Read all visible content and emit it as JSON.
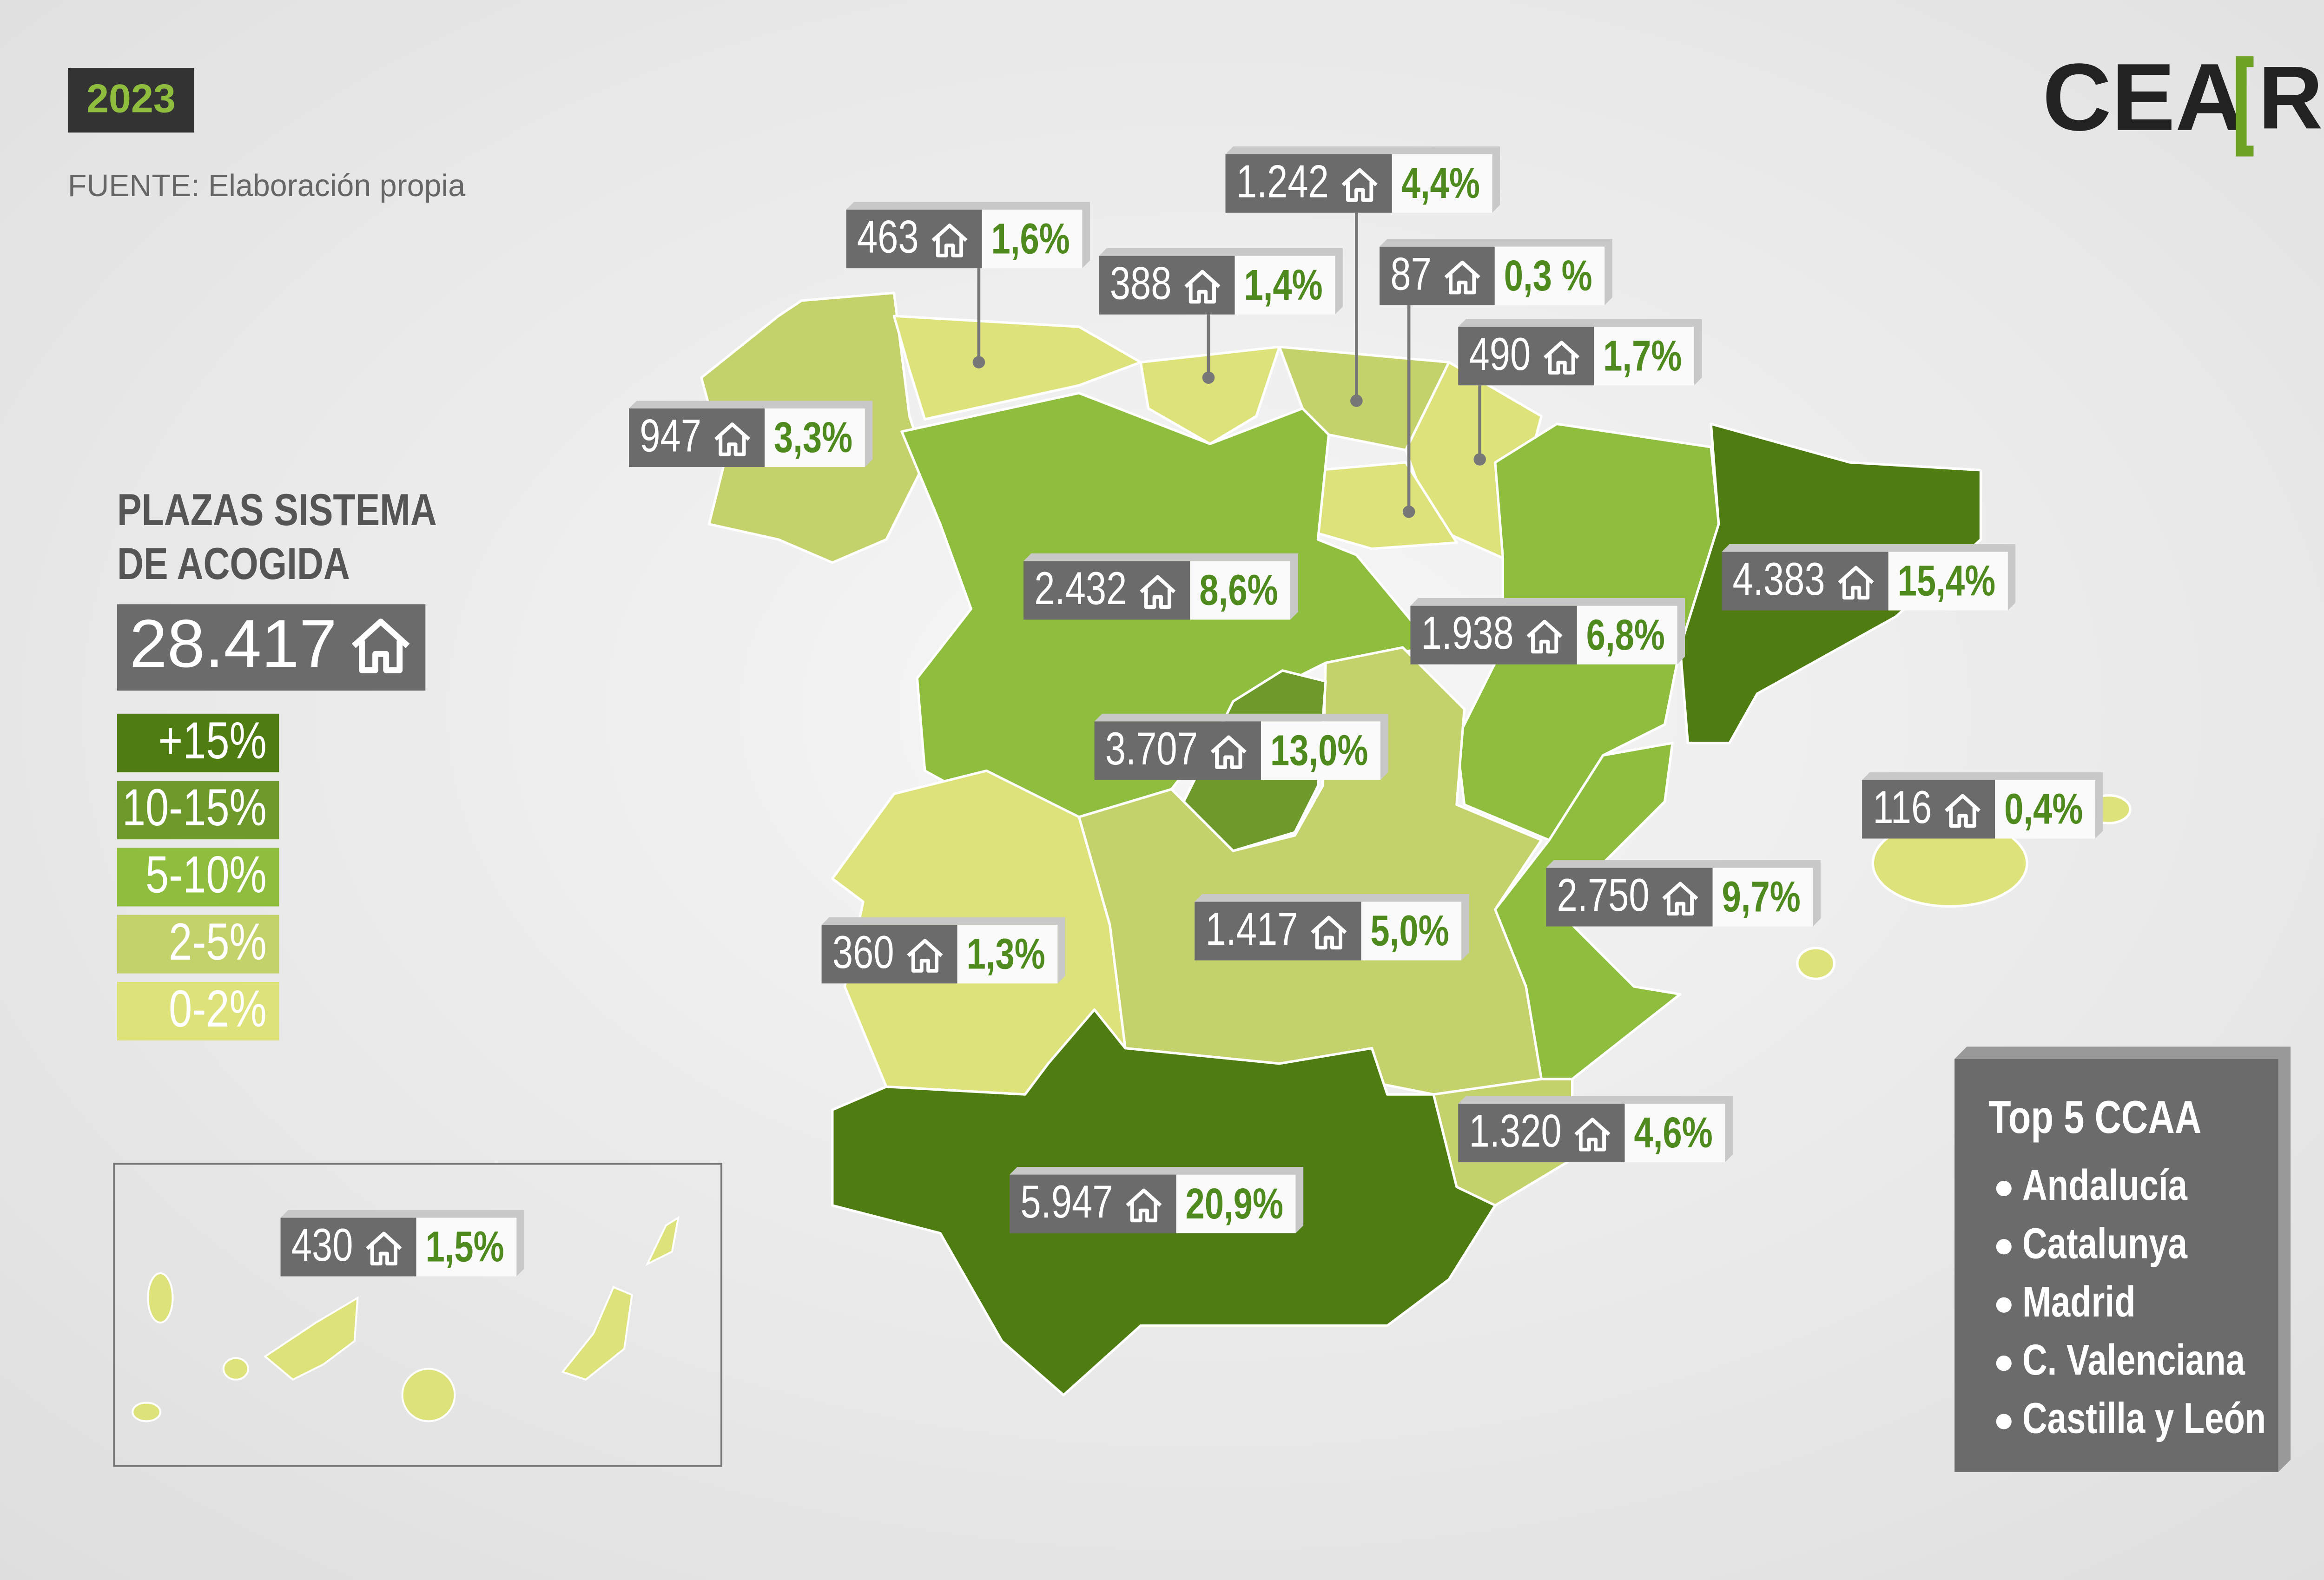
{
  "year": "2023",
  "source": "FUENTE: Elaboración propia",
  "logo": {
    "text": "CEA",
    "mark": "R"
  },
  "total_title": [
    "PLAZAS SISTEMA",
    "DE ACOGIDA"
  ],
  "total": "28.417",
  "legend": [
    "+15%",
    "10-15%",
    "5-10%",
    "2-5%",
    "0-2%"
  ],
  "regions": [
    {
      "places": "463",
      "share": "1,6%"
    },
    {
      "places": "388",
      "share": "1,4%"
    },
    {
      "places": "1.242",
      "share": "4,4%"
    },
    {
      "places": "87",
      "share": "0,3 %"
    },
    {
      "places": "490",
      "share": "1,7%"
    },
    {
      "places": "947",
      "share": "3,3%"
    },
    {
      "places": "2.432",
      "share": "8,6%"
    },
    {
      "places": "1.938",
      "share": "6,8%"
    },
    {
      "places": "4.383",
      "share": "15,4%"
    },
    {
      "places": "3.707",
      "share": "13,0%"
    },
    {
      "places": "116",
      "share": "0,4%"
    },
    {
      "places": "2.750",
      "share": "9,7%"
    },
    {
      "places": "360",
      "share": "1,3%"
    },
    {
      "places": "1.417",
      "share": "5,0%"
    },
    {
      "places": "1.320",
      "share": "4,6%"
    },
    {
      "places": "5.947",
      "share": "20,9%"
    },
    {
      "places": "430",
      "share": "1,5%"
    }
  ],
  "top5": {
    "title": "Top 5 CCAA",
    "items": [
      "Andalucía",
      "Catalunya",
      "Madrid",
      "C. Valenciana",
      "Castilla y León"
    ]
  }
}
